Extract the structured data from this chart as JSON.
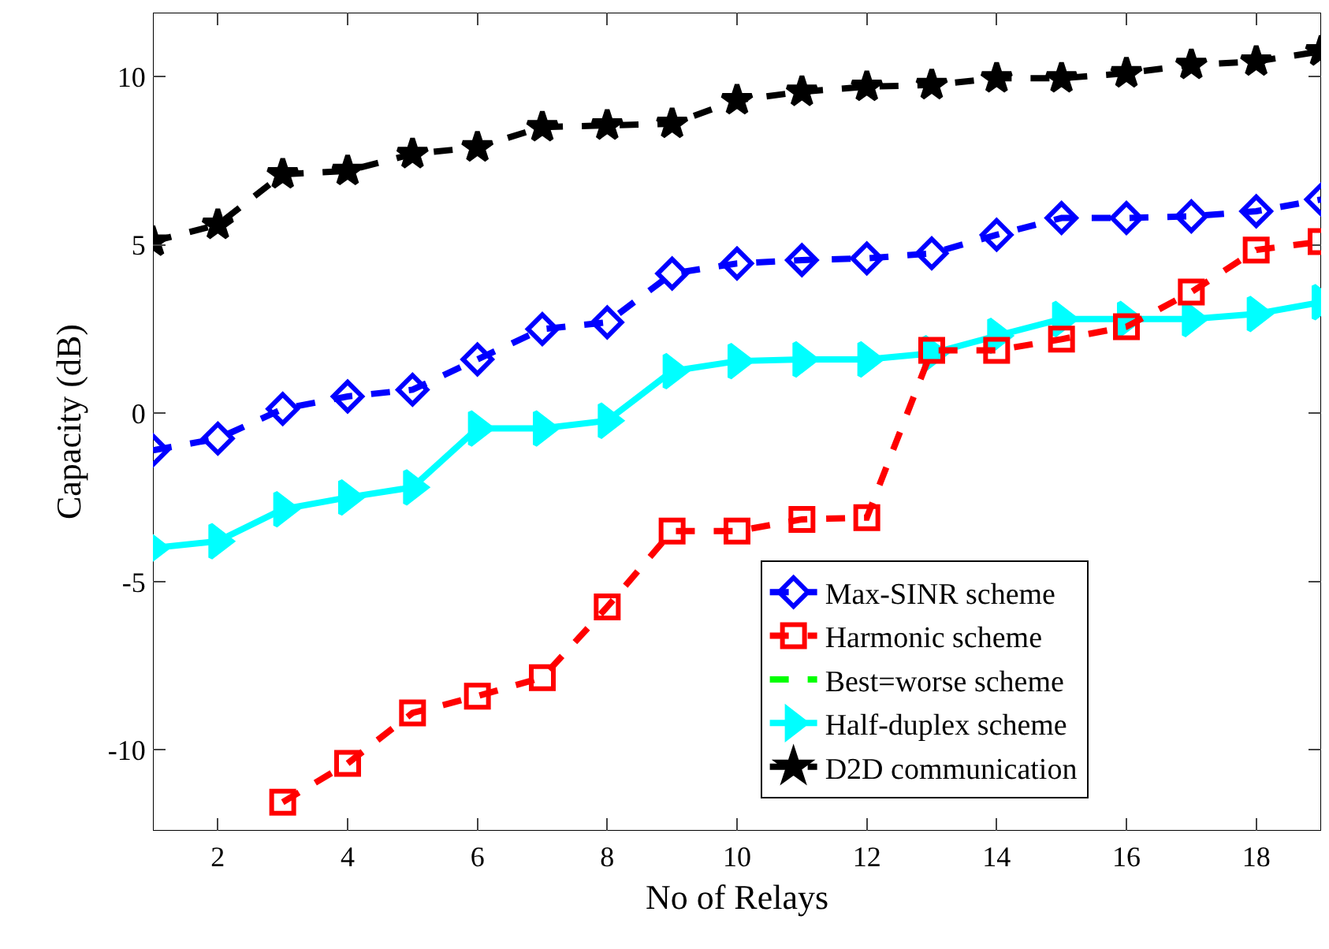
{
  "chart_data": {
    "type": "line",
    "xlabel": "No of Relays",
    "ylabel": "Capacity (dB)",
    "x": [
      1,
      2,
      3,
      4,
      5,
      6,
      7,
      8,
      9,
      10,
      11,
      12,
      13,
      14,
      15,
      16,
      17,
      18,
      19
    ],
    "xlim": [
      1,
      19
    ],
    "xticks": [
      2,
      4,
      6,
      8,
      10,
      12,
      14,
      16,
      18
    ],
    "ylim": [
      -12.4,
      11.9
    ],
    "yticks": [
      -10,
      -5,
      0,
      5,
      10
    ],
    "grid": false,
    "legend": "bottom right",
    "series": [
      {
        "name": "Max-SINR scheme",
        "color": "#0000ff",
        "marker": "diamond",
        "line_style": "dashed",
        "values": [
          -1.1,
          -0.75,
          0.13,
          0.5,
          0.7,
          1.6,
          2.5,
          2.7,
          4.15,
          4.45,
          4.55,
          4.6,
          4.75,
          5.3,
          5.8,
          5.8,
          5.85,
          6.0,
          6.35
        ]
      },
      {
        "name": "Harmonic scheme",
        "color": "#ff0000",
        "marker": "square",
        "line_style": "dashed",
        "values": [
          null,
          null,
          -11.55,
          -10.4,
          -8.9,
          -8.4,
          -7.85,
          -5.75,
          -3.5,
          -3.5,
          -3.15,
          -3.1,
          1.87,
          1.87,
          2.2,
          2.57,
          3.6,
          4.85,
          5.1
        ]
      },
      {
        "name": "Best=worse scheme",
        "color": "#00ff00",
        "marker": "none",
        "line_style": "dashed",
        "values": [
          null,
          null,
          null,
          null,
          null,
          null,
          null,
          null,
          null,
          null,
          null,
          null,
          null,
          null,
          null,
          null,
          null,
          null,
          null
        ]
      },
      {
        "name": "Half-duplex scheme",
        "color": "#00ffff",
        "marker": "triangle",
        "line_style": "solid",
        "values": [
          -4.0,
          -3.8,
          -2.85,
          -2.5,
          -2.2,
          -0.45,
          -0.45,
          -0.22,
          1.25,
          1.55,
          1.6,
          1.6,
          1.78,
          2.3,
          2.8,
          2.8,
          2.8,
          2.95,
          3.3
        ]
      },
      {
        "name": "D2D communication",
        "color": "#000000",
        "marker": "star",
        "line_style": "dashed",
        "values": [
          5.1,
          5.6,
          7.1,
          7.2,
          7.7,
          7.9,
          8.5,
          8.55,
          8.6,
          9.3,
          9.55,
          9.7,
          9.75,
          9.95,
          9.95,
          10.1,
          10.35,
          10.45,
          10.75
        ]
      }
    ]
  }
}
